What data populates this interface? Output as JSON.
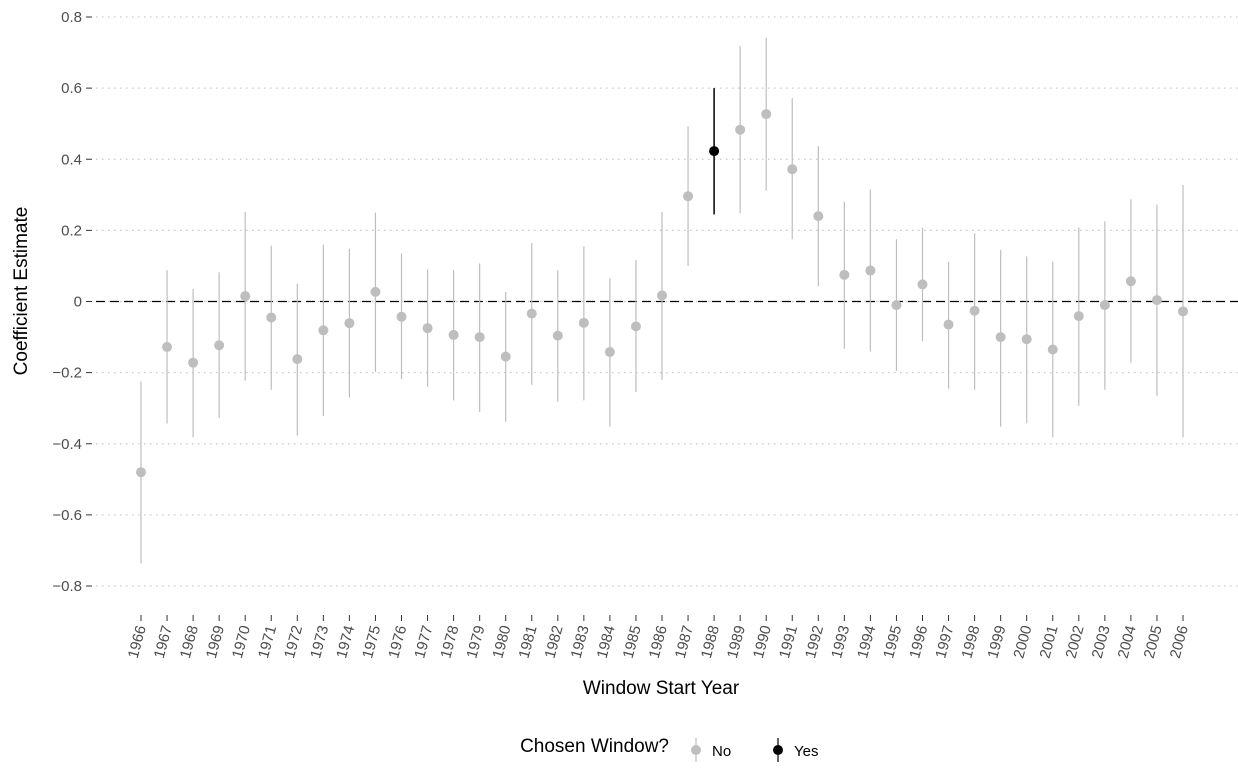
{
  "chart_data": {
    "type": "scatter",
    "subtype": "point-range",
    "xlabel": "Window Start Year",
    "ylabel": "Coefficient Estimate",
    "ylim": [
      -0.85,
      0.8
    ],
    "y_ticks": [
      0.8,
      0.6,
      0.4,
      0.2,
      0,
      -0.2,
      -0.4,
      -0.6,
      -0.8
    ],
    "y_tick_labels": [
      "0.8",
      "0.6",
      "0.4",
      "0.2",
      "0",
      "−0.2",
      "−0.4",
      "−0.6",
      "−0.8"
    ],
    "grid": "horizontal-dotted",
    "reference_line": {
      "y": 0,
      "style": "dashed"
    },
    "x": [
      "1966",
      "1967",
      "1968",
      "1969",
      "1970",
      "1971",
      "1972",
      "1973",
      "1974",
      "1975",
      "1976",
      "1977",
      "1978",
      "1979",
      "1980",
      "1981",
      "1982",
      "1983",
      "1984",
      "1985",
      "1986",
      "1987",
      "1988",
      "1989",
      "1990",
      "1991",
      "1992",
      "1993",
      "1994",
      "1995",
      "1996",
      "1997",
      "1998",
      "1999",
      "2000",
      "2001",
      "2002",
      "2003",
      "2004",
      "2005",
      "2006"
    ],
    "estimate": [
      -0.48,
      -0.128,
      -0.172,
      -0.123,
      0.015,
      -0.045,
      -0.162,
      -0.081,
      -0.061,
      0.027,
      -0.043,
      -0.075,
      -0.094,
      -0.1,
      -0.155,
      -0.034,
      -0.096,
      -0.06,
      -0.142,
      -0.07,
      0.017,
      0.296,
      0.423,
      0.483,
      0.527,
      0.372,
      0.24,
      0.075,
      0.087,
      -0.01,
      0.048,
      -0.065,
      -0.026,
      -0.1,
      -0.106,
      -0.135,
      -0.041,
      -0.01,
      0.057,
      0.004,
      -0.028
    ],
    "lower": [
      -0.737,
      -0.343,
      -0.382,
      -0.328,
      -0.222,
      -0.248,
      -0.377,
      -0.322,
      -0.27,
      -0.198,
      -0.218,
      -0.24,
      -0.278,
      -0.311,
      -0.338,
      -0.234,
      -0.282,
      -0.278,
      -0.352,
      -0.255,
      -0.22,
      0.1,
      0.245,
      0.248,
      0.312,
      0.175,
      0.043,
      -0.133,
      -0.14,
      -0.195,
      -0.112,
      -0.245,
      -0.248,
      -0.352,
      -0.342,
      -0.382,
      -0.293,
      -0.248,
      -0.172,
      -0.265,
      -0.382
    ],
    "upper": [
      -0.225,
      0.088,
      0.035,
      0.082,
      0.252,
      0.157,
      0.05,
      0.16,
      0.148,
      0.25,
      0.135,
      0.09,
      0.088,
      0.107,
      0.027,
      0.165,
      0.088,
      0.155,
      0.065,
      0.117,
      0.252,
      0.492,
      0.6,
      0.718,
      0.742,
      0.572,
      0.437,
      0.28,
      0.315,
      0.175,
      0.207,
      0.112,
      0.192,
      0.145,
      0.127,
      0.112,
      0.208,
      0.225,
      0.287,
      0.272,
      0.328
    ],
    "chosen_index": 22,
    "series": [
      {
        "name": "No",
        "color": "#bebebe"
      },
      {
        "name": "Yes",
        "color": "#000000"
      }
    ],
    "legend_title": "Chosen Window?",
    "legend_position": "bottom"
  }
}
